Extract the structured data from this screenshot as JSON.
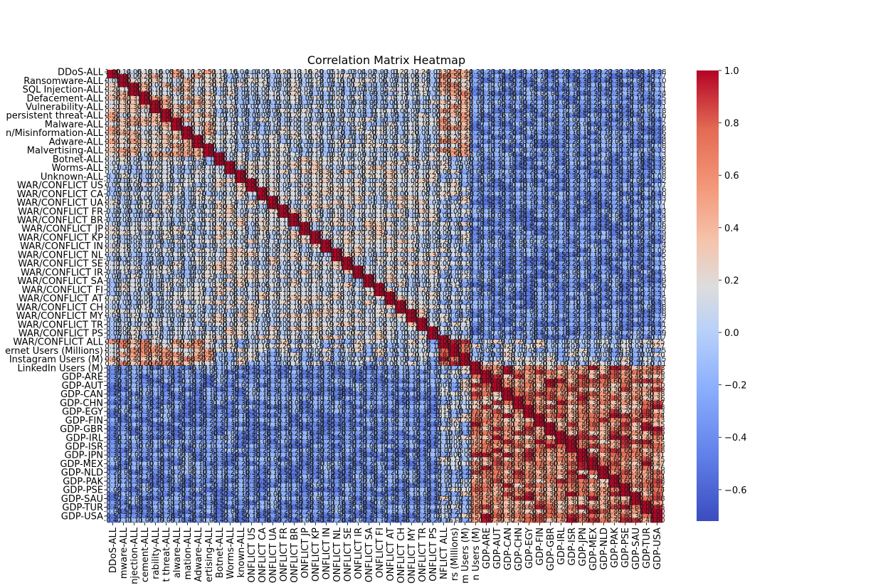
{
  "chart_data": {
    "type": "heatmap",
    "title": "Correlation Matrix Heatmap",
    "xlabel": "",
    "ylabel": "",
    "annotated": true,
    "annotation_format": "2 decimals",
    "colormap": "coolwarm",
    "colorbar": {
      "vmin": -0.72,
      "vmax": 1.0,
      "ticks": [
        1.0,
        0.8,
        0.6,
        0.4,
        0.2,
        0.0,
        -0.2,
        -0.4,
        -0.6
      ],
      "tick_labels": [
        "1.0",
        "0.8",
        "0.6",
        "0.4",
        "0.2",
        "0.0",
        "−0.2",
        "−0.4",
        "−0.6"
      ]
    },
    "colors": {
      "low": "#3b4cc0",
      "mid": "#dddddd",
      "high": "#b40426",
      "annotation_text": "#1c1c1c"
    },
    "groups": [
      {
        "name": "attack",
        "first": 0,
        "last": 12
      },
      {
        "name": "conflict",
        "first": 13,
        "last": 39
      },
      {
        "name": "users",
        "first": 40,
        "last": 43
      },
      {
        "name": "gdp",
        "first": 44,
        "last": 67
      }
    ],
    "row_labels": [
      "DDoS-ALL",
      "Ransomware-ALL",
      "SQL Injection-ALL",
      "Defacement-ALL",
      "Vulnerability-ALL",
      "persistent threat-ALL",
      "Malware-ALL",
      "n/Misinformation-ALL",
      "Adware-ALL",
      "Malvertising-ALL",
      "Botnet-ALL",
      "Worms-ALL",
      "Unknown-ALL",
      "WAR/CONFLICT US",
      "WAR/CONFLICT CA",
      "WAR/CONFLICT UA",
      "WAR/CONFLICT FR",
      "WAR/CONFLICT BR",
      "WAR/CONFLICT JP",
      "WAR/CONFLICT KP",
      "WAR/CONFLICT IN",
      "WAR/CONFLICT NL",
      "WAR/CONFLICT SE",
      "WAR/CONFLICT IR",
      "WAR/CONFLICT SA",
      "WAR/CONFLICT FI",
      "WAR/CONFLICT AT",
      "WAR/CONFLICT CH",
      "WAR/CONFLICT MY",
      "WAR/CONFLICT TR",
      "WAR/CONFLICT PS",
      "WAR/CONFLICT ALL",
      "ernet Users (Millions)",
      "Instagram Users (M)",
      "LinkedIn Users (M)",
      "GDP-ARE",
      "GDP-AUT",
      "GDP-CAN",
      "GDP-CHN",
      "GDP-EGY",
      "GDP-FIN",
      "GDP-GBR",
      "GDP-IRL",
      "GDP-ISR",
      "GDP-JPN",
      "GDP-MEX",
      "GDP-NLD",
      "GDP-PAK",
      "GDP-PSE",
      "GDP-SAU",
      "GDP-TUR",
      "GDP-USA"
    ],
    "row_label_slots": [
      0,
      2,
      4,
      6,
      8,
      10,
      12,
      14,
      16,
      18,
      20,
      22,
      24,
      26,
      28,
      30,
      32,
      34,
      36,
      38,
      40,
      42,
      44,
      46,
      48,
      50,
      52,
      54,
      56,
      58,
      60,
      62,
      64,
      66,
      68,
      70,
      72,
      74,
      76,
      78,
      80,
      82,
      84,
      86,
      88,
      90,
      92,
      94,
      96,
      98,
      100,
      102
    ],
    "col_labels": [
      "DDoS-ALL",
      "mware-ALL",
      "njection-ALL",
      "cement-ALL",
      "rability-ALL",
      "t threat-ALL",
      "alware-ALL",
      "mation-ALL",
      "Adware-ALL",
      "ertising-ALL",
      "Botnet-ALL",
      "Worms-ALL",
      "known-ALL",
      "ONFLICT US",
      "ONFLICT CA",
      "ONFLICT UA",
      "ONFLICT FR",
      "ONFLICT BR",
      "ONFLICT JP",
      "ONFLICT KP",
      "ONFLICT IN",
      "ONFLICT NL",
      "ONFLICT SE",
      "ONFLICT IR",
      "ONFLICT SA",
      "ONFLICT FI",
      "ONFLICT AT",
      "ONFLICT CH",
      "ONFLICT MY",
      "ONFLICT TR",
      "ONFLICT PS",
      "NFLICT ALL",
      "rs (Millions)",
      "m Users (M)",
      "n Users (M)",
      "GDP-ARE",
      "GDP-AUT",
      "GDP-CAN",
      "GDP-CHN",
      "GDP-EGY",
      "GDP-FIN",
      "GDP-GBR",
      "GDP-IRL",
      "GDP-ISR",
      "GDP-JPN",
      "GDP-MEX",
      "GDP-NLD",
      "GDP-PAK",
      "GDP-PSE",
      "GDP-SAU",
      "GDP-TUR",
      "GDP-USA"
    ],
    "col_label_slots": [
      0,
      1,
      2,
      3,
      4,
      5,
      6,
      7,
      8,
      9,
      10,
      11,
      12,
      13,
      14,
      15,
      16,
      17,
      18,
      19,
      20,
      21,
      22,
      23,
      24,
      25,
      26,
      27,
      28,
      29,
      30,
      31,
      32,
      33,
      34,
      35,
      36,
      37,
      38,
      39,
      40,
      41,
      42,
      43,
      44,
      45,
      46,
      47,
      48,
      49,
      50,
      51
    ],
    "matrix_rows": 104,
    "matrix_cols": 52,
    "matrix_col_to_row": [
      0,
      2,
      4,
      6,
      8,
      10,
      12,
      14,
      16,
      18,
      20,
      22,
      24,
      26,
      28,
      30,
      32,
      34,
      36,
      38,
      40,
      42,
      44,
      46,
      48,
      50,
      52,
      54,
      56,
      58,
      60,
      62,
      64,
      66,
      68,
      70,
      72,
      74,
      76,
      78,
      80,
      82,
      84,
      86,
      88,
      90,
      92,
      94,
      96,
      98,
      100,
      102
    ]
  }
}
